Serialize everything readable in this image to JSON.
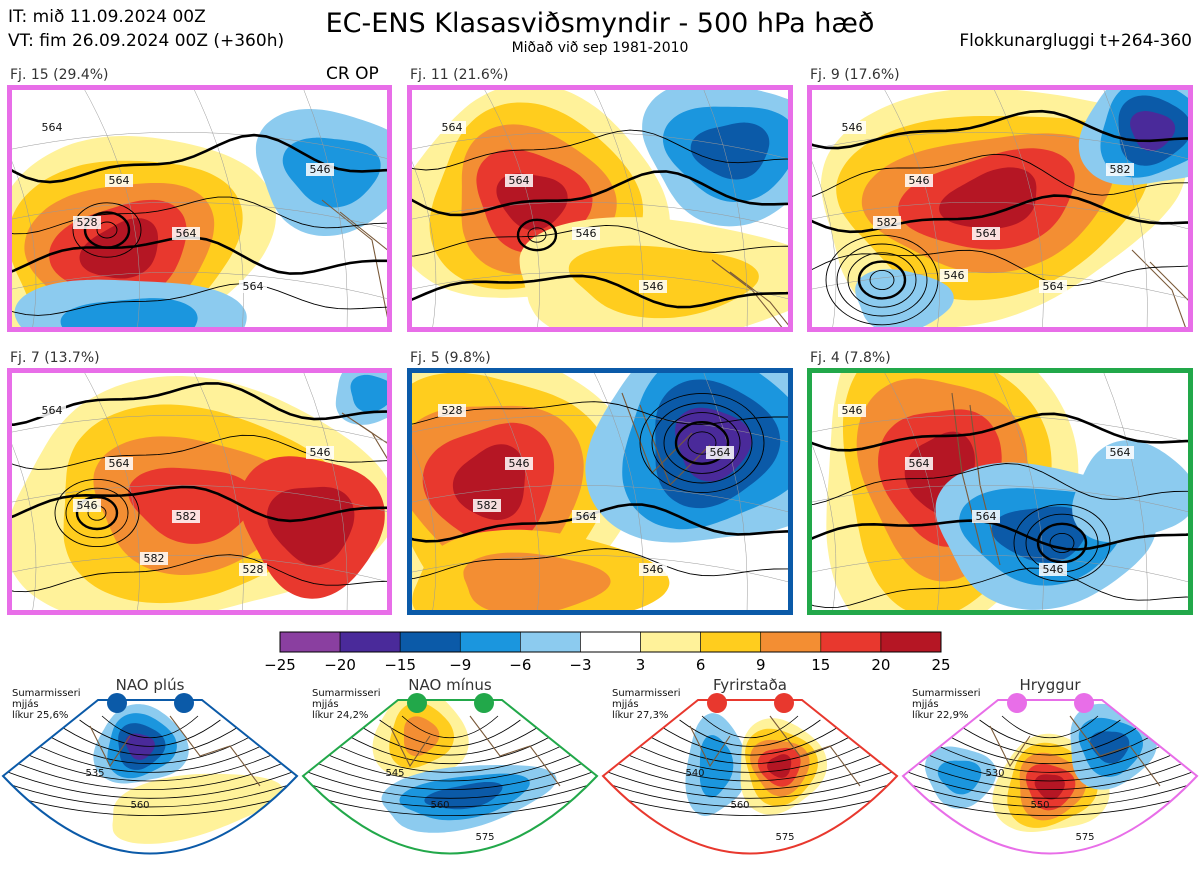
{
  "header": {
    "it": "IT: mið 11.09.2024 00Z",
    "vt": "VT: fim 26.09.2024 00Z  (+360h)",
    "title": "EC-ENS Klasasviðsmyndir - 500 hPa hæð",
    "subtitle": "Miðað við sep 1981-2010",
    "window": "Flokkunargluggi t+264-360"
  },
  "chart_data": [
    {
      "type": "heatmap",
      "title": "EC-ENS Klasasviðsmyndir - 500 hPa hæð",
      "subtitle": "Miðað við sep 1981-2010",
      "clusters": [
        {
          "label": "Fj. 15 (29.4%)",
          "members": 15,
          "probability_pct": 29.4,
          "regime": "Hryggur",
          "frame_color": "#e86ee8",
          "op_label": "CR OP",
          "contour_labels": [
            "564",
            "564",
            "564",
            "564",
            "546",
            "528"
          ]
        },
        {
          "label": "Fj. 11 (21.6%)",
          "members": 11,
          "probability_pct": 21.6,
          "regime": "Hryggur",
          "frame_color": "#e86ee8",
          "contour_labels": [
            "564",
            "564",
            "546",
            "546"
          ]
        },
        {
          "label": "Fj. 9 (17.6%)",
          "members": 9,
          "probability_pct": 17.6,
          "regime": "Hryggur",
          "frame_color": "#e86ee8",
          "contour_labels": [
            "546",
            "546",
            "564",
            "564",
            "582",
            "582",
            "546"
          ]
        },
        {
          "label": "Fj. 7 (13.7%)",
          "members": 7,
          "probability_pct": 13.7,
          "regime": "Hryggur",
          "frame_color": "#e86ee8",
          "contour_labels": [
            "564",
            "564",
            "582",
            "528",
            "546",
            "546",
            "582"
          ]
        },
        {
          "label": "Fj. 5 (9.8%)",
          "members": 5,
          "probability_pct": 9.8,
          "regime": "NAO plús",
          "frame_color": "#0b5aa8",
          "contour_labels": [
            "528",
            "546",
            "564",
            "546",
            "564",
            "582"
          ]
        },
        {
          "label": "Fj. 4 (7.8%)",
          "members": 4,
          "probability_pct": 7.8,
          "regime": "NAO mínus",
          "frame_color": "#22a84a",
          "contour_labels": [
            "546",
            "564",
            "564",
            "546",
            "564"
          ]
        }
      ],
      "colorbar": {
        "ticks": [
          -25,
          -20,
          -15,
          -9,
          -6,
          -3,
          3,
          6,
          9,
          15,
          20,
          25
        ],
        "colors": [
          "#8a3fa0",
          "#4a2a9a",
          "#0b5aa8",
          "#1b96de",
          "#8ccbef",
          "#ffffff",
          "#fff29a",
          "#ffcd1e",
          "#f38e33",
          "#e8382e",
          "#b51624"
        ]
      },
      "regimes": [
        {
          "name": "NAO plús",
          "stat_lines": [
            "Sumarmisseri",
            "mjjás",
            "líkur 25,6%"
          ],
          "probability_pct": 25.6,
          "color": "#0b5aa8",
          "contour_labels": [
            "535",
            "560"
          ]
        },
        {
          "name": "NAO mínus",
          "stat_lines": [
            "Sumarmisseri",
            "mjjás",
            "líkur 24,2%"
          ],
          "probability_pct": 24.2,
          "color": "#22a84a",
          "contour_labels": [
            "545",
            "560",
            "575"
          ]
        },
        {
          "name": "Fyrirstaða",
          "stat_lines": [
            "Sumarmisseri",
            "mjjás",
            "líkur 27,3%"
          ],
          "probability_pct": 27.3,
          "color": "#e8382e",
          "contour_labels": [
            "540",
            "560",
            "575"
          ]
        },
        {
          "name": "Hryggur",
          "stat_lines": [
            "Sumarmisseri",
            "mjjás",
            "líkur 22,9%"
          ],
          "probability_pct": 22.9,
          "color": "#e86ee8",
          "contour_labels": [
            "530",
            "550",
            "575"
          ]
        }
      ]
    }
  ]
}
